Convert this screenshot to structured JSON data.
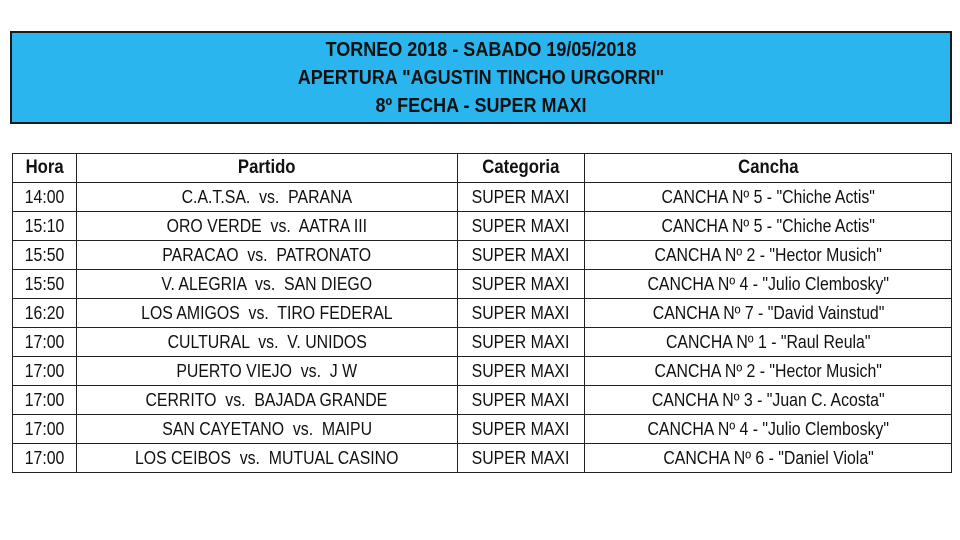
{
  "header": {
    "line1": "TORNEO 2018 - SABADO 19/05/2018",
    "line2": "APERTURA \"AGUSTIN TINCHO URGORRI\"",
    "line3": "8º FECHA - SUPER MAXI",
    "background_color": "#2bb5ef"
  },
  "table": {
    "columns": [
      "Hora",
      "Partido",
      "Categoria",
      "Cancha"
    ],
    "rows": [
      [
        "14:00",
        "C.A.T.SA.  vs.  PARANA",
        "SUPER MAXI",
        "CANCHA Nº 5 - \"Chiche Actis\""
      ],
      [
        "15:10",
        "ORO VERDE  vs.  AATRA III",
        "SUPER MAXI",
        "CANCHA Nº 5 - \"Chiche Actis\""
      ],
      [
        "15:50",
        "PARACAO  vs.  PATRONATO",
        "SUPER MAXI",
        "CANCHA Nº 2 - \"Hector Musich\""
      ],
      [
        "15:50",
        "V. ALEGRIA  vs.  SAN DIEGO",
        "SUPER MAXI",
        "CANCHA Nº 4 - \"Julio Clembosky\""
      ],
      [
        "16:20",
        "LOS AMIGOS  vs.  TIRO FEDERAL",
        "SUPER MAXI",
        "CANCHA Nº 7 - \"David Vainstud\""
      ],
      [
        "17:00",
        "CULTURAL  vs.  V. UNIDOS",
        "SUPER MAXI",
        "CANCHA Nº 1 - \"Raul Reula\""
      ],
      [
        "17:00",
        "PUERTO VIEJO  vs.  J W",
        "SUPER MAXI",
        "CANCHA Nº 2 - \"Hector Musich\""
      ],
      [
        "17:00",
        "CERRITO  vs.  BAJADA GRANDE",
        "SUPER MAXI",
        "CANCHA Nº 3 - \"Juan C. Acosta\""
      ],
      [
        "17:00",
        "SAN CAYETANO  vs.  MAIPU",
        "SUPER MAXI",
        "CANCHA Nº 4 - \"Julio Clembosky\""
      ],
      [
        "17:00",
        "LOS CEIBOS  vs.  MUTUAL CASINO",
        "SUPER MAXI",
        "CANCHA Nº 6 - \"Daniel Viola\""
      ]
    ]
  }
}
